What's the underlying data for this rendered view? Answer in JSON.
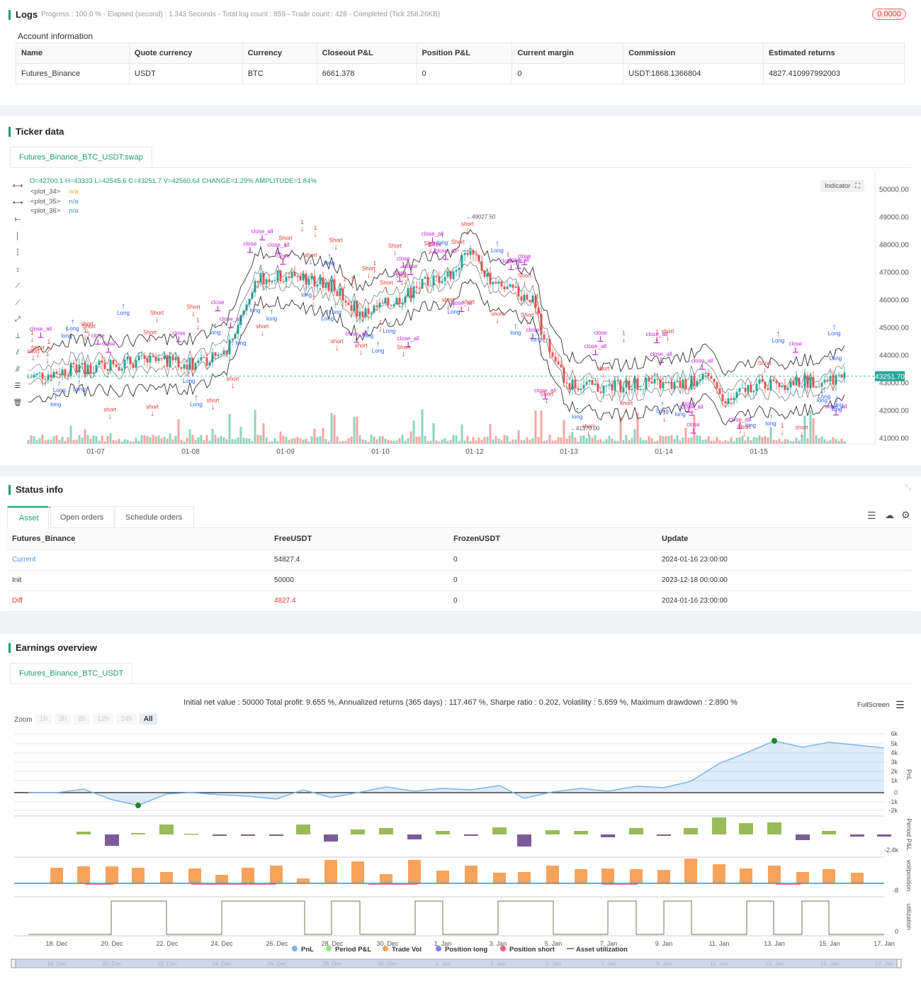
{
  "logs": {
    "title": "Logs",
    "progress": "Progress : 100.0 % - Elapsed (second) : 1.343  Seconds - Total log count : 859 - Trade count : 428 - Completed (Tick 258.26KB)",
    "badge": "0.0000"
  },
  "account": {
    "heading": "Account information",
    "columns": [
      "Name",
      "Quote currency",
      "Currency",
      "Closeout P&L",
      "Position P&L",
      "Current margin",
      "Commission",
      "Estimated returns"
    ],
    "row": [
      "Futures_Binance",
      "USDT",
      "BTC",
      "6661.378",
      "0",
      "0",
      "USDT:1868.1366804",
      "4827.410997992003"
    ]
  },
  "ticker": {
    "title": "Ticker data",
    "tab": "Futures_Binance_BTC_USDT:swap",
    "ohlc": "O=42700.1 H=43333 L=42545.6 C=43251.7 V=42560.64 CHANGE=1.29% AMPLITUDE=1.84%",
    "plots": [
      {
        "name": "<plot_34>",
        "value": "n/a",
        "color": "#f5a623"
      },
      {
        "name": "<plot_35>",
        "value": "n/a",
        "color": "#4a90e2"
      },
      {
        "name": "<plot_36>",
        "value": "n/a",
        "color": "#4a90e2"
      }
    ],
    "indicator_btn": "Indicator",
    "price_ticks": [
      "50000.00",
      "49000.00",
      "48000.00",
      "47000.00",
      "46000.00",
      "45000.00",
      "44000.00",
      "43000.00",
      "42000.00",
      "41000.00"
    ],
    "last_price": "43251.70",
    "high_mark": "49027.50",
    "low_mark": "41370.00",
    "date_ticks": [
      "01-07",
      "01-08",
      "01-09",
      "01-10",
      "01-12",
      "01-13",
      "01-14",
      "01-15"
    ]
  },
  "status": {
    "title": "Status info",
    "tabs": [
      "Asset",
      "Open orders",
      "Schedule orders"
    ],
    "columns": [
      "Futures_Binance",
      "FreeUSDT",
      "FrozenUSDT",
      "Update"
    ],
    "rows": [
      {
        "label": "Current",
        "free": "54827.4",
        "frozen": "0",
        "update": "2024-01-16 23:00:00",
        "color": "#4a90e2",
        "free_color": "#333"
      },
      {
        "label": "Init",
        "free": "50000",
        "frozen": "0",
        "update": "2023-12-18 00:00:00",
        "color": "#333",
        "free_color": "#333"
      },
      {
        "label": "Diff",
        "free": "4827.4",
        "frozen": "0",
        "update": "2024-01-16 23:00:00",
        "color": "#e53935",
        "free_color": "#e53935"
      }
    ]
  },
  "earnings": {
    "title": "Earnings overview",
    "tab": "Futures_Binance_BTC_USDT",
    "summary": "Initial net value : 50000 Total profit: 9.655 %, Annualized returns (365 days) : 117.467 %, Sharpe ratio : 0.202, Volatility : 5.659 %, Maximum drawdown : 2.890 %",
    "fullscreen": "FullScreen",
    "zoom_label": "Zoom",
    "zoom_opts": [
      "1h",
      "3h",
      "8h",
      "12h",
      "24h",
      "All"
    ],
    "pnl_ticks": [
      "6k",
      "5k",
      "4k",
      "3k",
      "2k",
      "1k",
      "0",
      "-1k",
      "-2k"
    ],
    "period_tick": "-2.4k",
    "vol_tick": "-8",
    "util_tick": "0",
    "axis_labels": [
      "PnL",
      "Period P&L",
      "vol/position",
      "utilization"
    ],
    "date_ticks": [
      "18. Dec",
      "20. Dec",
      "22. Dec",
      "24. Dec",
      "26. Dec",
      "28. Dec",
      "30. Dec",
      "1. Jan",
      "3. Jan",
      "5. Jan",
      "7. Jan",
      "9. Jan",
      "11. Jan",
      "13. Jan",
      "15. Jan",
      "17. Jan"
    ],
    "legend": [
      {
        "label": "PnL",
        "color": "#7cb5ec"
      },
      {
        "label": "Period P&L",
        "color": "#90ed7d"
      },
      {
        "label": "Trade Vol",
        "color": "#f7a35c"
      },
      {
        "label": "Position long",
        "color": "#8085e9"
      },
      {
        "label": "Position short",
        "color": "#f15c80"
      },
      {
        "label": "Asset utilization",
        "color": "#8d8d6a"
      }
    ]
  }
}
